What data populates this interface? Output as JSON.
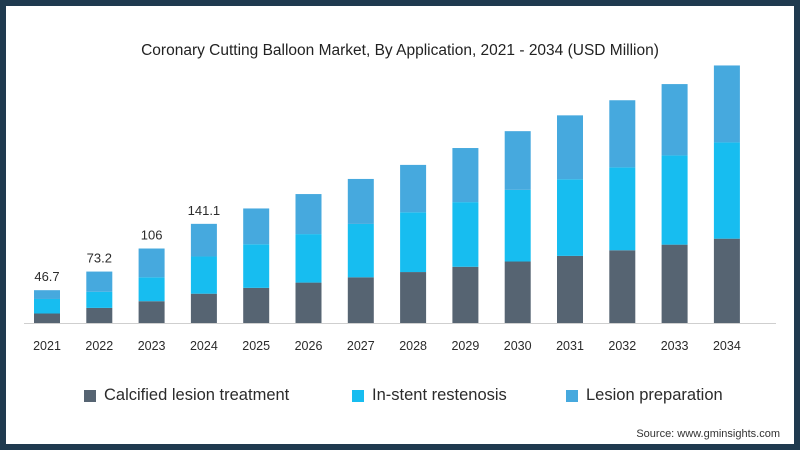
{
  "chart_data": {
    "type": "bar",
    "stacked": true,
    "title": "Coronary Cutting Balloon Market, By Application, 2021 - 2034 (USD Million)",
    "categories": [
      "2021",
      "2022",
      "2023",
      "2024",
      "2025",
      "2026",
      "2027",
      "2028",
      "2029",
      "2030",
      "2031",
      "2032",
      "2033",
      "2034"
    ],
    "series": [
      {
        "name": "Calcified lesion treatment",
        "color": "#566472",
        "values": [
          13.5,
          21.5,
          31.0,
          41.7,
          50.0,
          57.5,
          65.0,
          72.5,
          80.0,
          87.5,
          95.5,
          103.5,
          111.5,
          120.0
        ]
      },
      {
        "name": "In-stent restenosis",
        "color": "#17bdf0",
        "values": [
          20.7,
          23.0,
          34.0,
          52.9,
          62.0,
          69.0,
          76.0,
          85.0,
          92.0,
          102.0,
          109.0,
          118.0,
          127.0,
          137.0
        ]
      },
      {
        "name": "Lesion preparation",
        "color": "#46a9de",
        "values": [
          12.5,
          28.7,
          41.0,
          46.5,
          51.0,
          57.0,
          64.0,
          67.5,
          77.0,
          83.5,
          91.0,
          95.5,
          101.5,
          109.5
        ]
      }
    ],
    "data_labels": [
      {
        "category": "2021",
        "text": "46.7"
      },
      {
        "category": "2022",
        "text": "73.2"
      },
      {
        "category": "2023",
        "text": "106"
      },
      {
        "category": "2024",
        "text": "141.1"
      }
    ],
    "xlabel": "",
    "ylabel": "",
    "ylim": [
      0,
      370
    ],
    "grid": false,
    "legend_position": "bottom"
  },
  "source": "Source: www.gminsights.com"
}
